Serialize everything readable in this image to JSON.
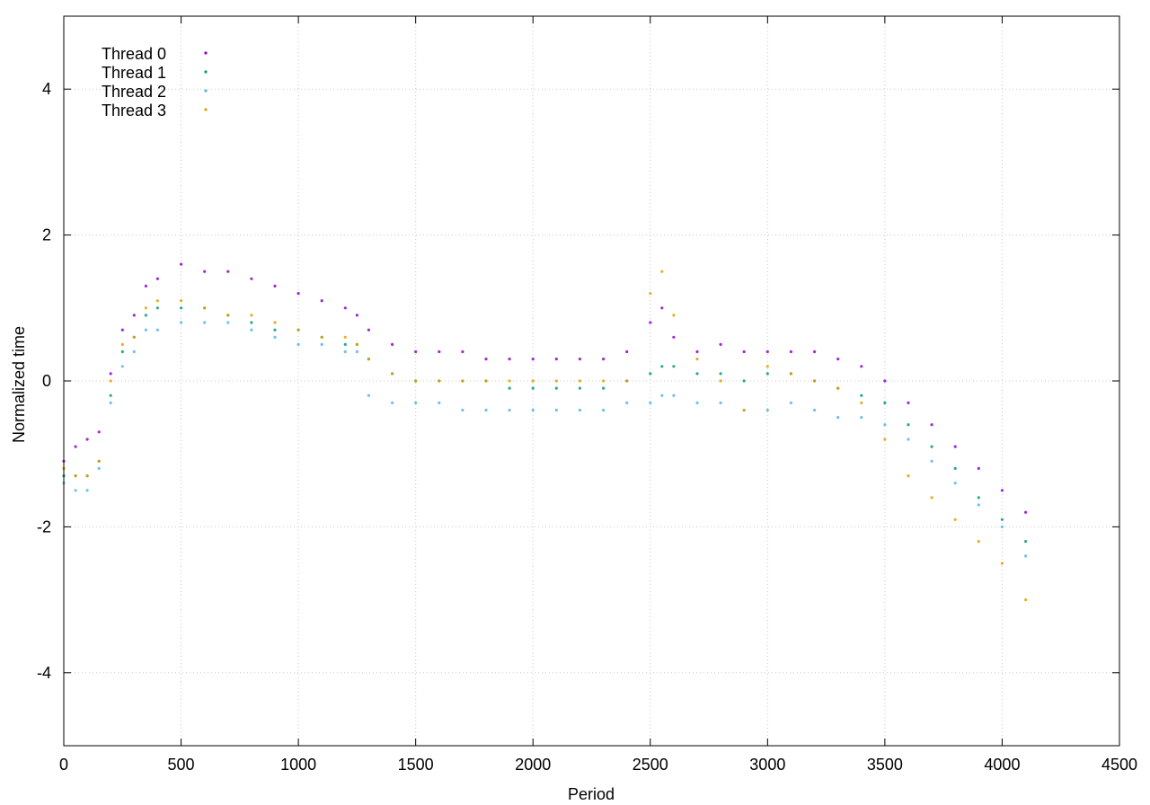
{
  "chart_data": {
    "type": "scatter",
    "title": "",
    "xlabel": "Period",
    "ylabel": "Normalized time",
    "xlim": [
      0,
      4500
    ],
    "ylim": [
      -5,
      5
    ],
    "xticks": [
      0,
      500,
      1000,
      1500,
      2000,
      2500,
      3000,
      3500,
      4000,
      4500
    ],
    "yticks": [
      -4,
      -2,
      0,
      2,
      4
    ],
    "grid": true,
    "legend_position": "top-left",
    "series": [
      {
        "name": "Thread 0",
        "color": "#9400d3",
        "x": [
          0,
          50,
          100,
          150,
          200,
          250,
          300,
          350,
          400,
          500,
          600,
          700,
          800,
          900,
          1000,
          1100,
          1200,
          1250,
          1300,
          1400,
          1500,
          1600,
          1700,
          1800,
          1900,
          2000,
          2100,
          2200,
          2300,
          2400,
          2500,
          2550,
          2600,
          2700,
          2800,
          2900,
          3000,
          3100,
          3200,
          3300,
          3400,
          3500,
          3600,
          3700,
          3800,
          3900,
          4000,
          4100
        ],
        "y": [
          -1.1,
          -0.9,
          -0.8,
          -0.7,
          0.1,
          0.7,
          0.9,
          1.3,
          1.4,
          1.6,
          1.5,
          1.5,
          1.4,
          1.3,
          1.2,
          1.1,
          1.0,
          0.9,
          0.7,
          0.5,
          0.4,
          0.4,
          0.4,
          0.3,
          0.3,
          0.3,
          0.3,
          0.3,
          0.3,
          0.4,
          0.8,
          1.0,
          0.6,
          0.4,
          0.5,
          0.4,
          0.4,
          0.4,
          0.4,
          0.3,
          0.2,
          0.0,
          -0.3,
          -0.6,
          -0.9,
          -1.2,
          -1.5,
          -1.8
        ]
      },
      {
        "name": "Thread 1",
        "color": "#009e73",
        "x": [
          0,
          50,
          100,
          150,
          200,
          250,
          300,
          350,
          400,
          500,
          600,
          700,
          800,
          900,
          1000,
          1100,
          1200,
          1250,
          1300,
          1400,
          1500,
          1600,
          1700,
          1800,
          1900,
          2000,
          2100,
          2200,
          2300,
          2400,
          2500,
          2550,
          2600,
          2700,
          2800,
          2900,
          3000,
          3100,
          3200,
          3300,
          3400,
          3500,
          3600,
          3700,
          3800,
          3900,
          4000,
          4100
        ],
        "y": [
          -1.3,
          -1.3,
          -1.3,
          -1.1,
          -0.2,
          0.4,
          0.6,
          0.9,
          1.0,
          1.0,
          1.0,
          0.9,
          0.8,
          0.7,
          0.7,
          0.6,
          0.5,
          0.5,
          0.3,
          0.1,
          0.0,
          0.0,
          0.0,
          0.0,
          -0.1,
          -0.1,
          -0.1,
          -0.1,
          -0.1,
          0.0,
          0.1,
          0.2,
          0.2,
          0.1,
          0.1,
          0.0,
          0.1,
          0.1,
          0.0,
          -0.1,
          -0.2,
          -0.3,
          -0.6,
          -0.9,
          -1.2,
          -1.6,
          -1.9,
          -2.2
        ]
      },
      {
        "name": "Thread 2",
        "color": "#56b4e9",
        "x": [
          0,
          50,
          100,
          150,
          200,
          250,
          300,
          350,
          400,
          500,
          600,
          700,
          800,
          900,
          1000,
          1100,
          1200,
          1250,
          1300,
          1400,
          1500,
          1600,
          1700,
          1800,
          1900,
          2000,
          2100,
          2200,
          2300,
          2400,
          2500,
          2550,
          2600,
          2700,
          2800,
          2900,
          3000,
          3100,
          3200,
          3300,
          3400,
          3500,
          3600,
          3700,
          3800,
          3900,
          4000,
          4100
        ],
        "y": [
          -1.4,
          -1.5,
          -1.5,
          -1.2,
          -0.3,
          0.2,
          0.4,
          0.7,
          0.7,
          0.8,
          0.8,
          0.8,
          0.7,
          0.6,
          0.5,
          0.5,
          0.4,
          0.4,
          -0.2,
          -0.3,
          -0.3,
          -0.3,
          -0.4,
          -0.4,
          -0.4,
          -0.4,
          -0.4,
          -0.4,
          -0.4,
          -0.3,
          -0.3,
          -0.2,
          -0.2,
          -0.3,
          -0.3,
          -0.4,
          -0.4,
          -0.3,
          -0.4,
          -0.5,
          -0.5,
          -0.6,
          -0.8,
          -1.1,
          -1.4,
          -1.7,
          -2.0,
          -2.4
        ]
      },
      {
        "name": "Thread 3",
        "color": "#e69f00",
        "x": [
          0,
          50,
          100,
          150,
          200,
          250,
          300,
          350,
          400,
          500,
          600,
          700,
          800,
          900,
          1000,
          1100,
          1200,
          1250,
          1300,
          1400,
          1500,
          1600,
          1700,
          1800,
          1900,
          2000,
          2100,
          2200,
          2300,
          2400,
          2500,
          2550,
          2600,
          2700,
          2800,
          2900,
          3000,
          3100,
          3200,
          3300,
          3400,
          3500,
          3600,
          3700,
          3800,
          3900,
          4000,
          4100
        ],
        "y": [
          -1.2,
          -1.3,
          -1.3,
          -1.1,
          0.0,
          0.5,
          0.6,
          1.0,
          1.1,
          1.1,
          1.0,
          0.9,
          0.9,
          0.8,
          0.7,
          0.6,
          0.6,
          0.5,
          0.3,
          0.1,
          0.0,
          0.0,
          0.0,
          0.0,
          0.0,
          0.0,
          0.0,
          0.0,
          0.0,
          0.0,
          1.2,
          1.5,
          0.9,
          0.3,
          0.0,
          -0.4,
          0.2,
          0.1,
          0.0,
          -0.1,
          -0.3,
          -0.8,
          -1.3,
          -1.6,
          -1.9,
          -2.2,
          -2.5,
          -3.0
        ]
      }
    ]
  }
}
